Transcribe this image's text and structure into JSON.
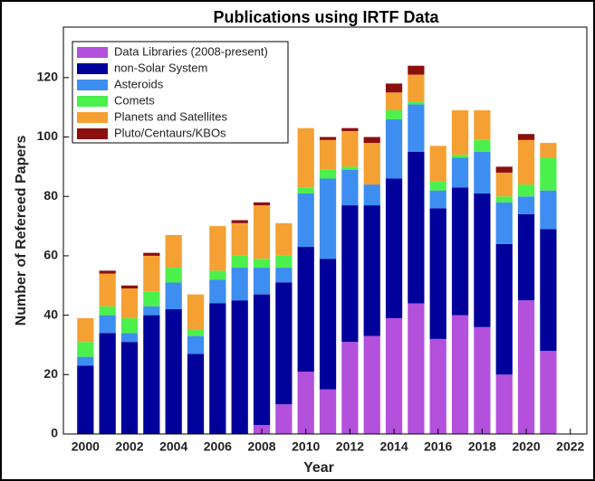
{
  "chart_data": {
    "type": "stacked-bar",
    "title": "Publications using IRTF Data",
    "x_label": "Year",
    "y_label": "Number of Refereed Papers",
    "x": [
      2000,
      2001,
      2002,
      2003,
      2004,
      2005,
      2006,
      2007,
      2008,
      2009,
      2010,
      2011,
      2012,
      2013,
      2014,
      2015,
      2016,
      2017,
      2018,
      2019,
      2020,
      2021
    ],
    "series": [
      {
        "name": "Data Libraries (2008-present)",
        "color": "#b350dc",
        "values": [
          0,
          0,
          0,
          0,
          0,
          0,
          0,
          0,
          3,
          10,
          21,
          15,
          31,
          33,
          39,
          44,
          32,
          40,
          36,
          20,
          45,
          28
        ]
      },
      {
        "name": "non-Solar System",
        "color": "#00009a",
        "values": [
          23,
          34,
          31,
          40,
          42,
          27,
          44,
          45,
          44,
          41,
          42,
          44,
          46,
          44,
          47,
          51,
          44,
          43,
          45,
          44,
          29,
          41
        ]
      },
      {
        "name": "Asteroids",
        "color": "#3d8ef0",
        "values": [
          3,
          6,
          3,
          3,
          9,
          6,
          8,
          11,
          9,
          5,
          18,
          27,
          12,
          7,
          20,
          16,
          6,
          10,
          14,
          14,
          6,
          13
        ]
      },
      {
        "name": "Comets",
        "color": "#4cf04c",
        "values": [
          5,
          3,
          5,
          5,
          5,
          2,
          3,
          4,
          3,
          4,
          2,
          3,
          1,
          0,
          3,
          1,
          3,
          1,
          4,
          2,
          4,
          11
        ]
      },
      {
        "name": "Planets and Satellites",
        "color": "#f5a032",
        "values": [
          8,
          11,
          10,
          12,
          11,
          12,
          15,
          11,
          18,
          11,
          20,
          10,
          12,
          14,
          6,
          9,
          12,
          15,
          10,
          8,
          15,
          5
        ]
      },
      {
        "name": "Pluto/Centaurs/KBOs",
        "color": "#8b1010",
        "values": [
          0,
          1,
          1,
          1,
          0,
          0,
          0,
          1,
          1,
          0,
          0,
          1,
          1,
          2,
          3,
          3,
          0,
          0,
          0,
          2,
          2,
          0
        ]
      }
    ],
    "xlim": [
      1999,
      2022.75
    ],
    "xticks": [
      2000,
      2002,
      2004,
      2006,
      2008,
      2010,
      2012,
      2014,
      2016,
      2018,
      2020,
      2022
    ],
    "ylim": [
      0,
      137
    ],
    "yticks": [
      0,
      20,
      40,
      60,
      80,
      100,
      120
    ],
    "legend": "upper left"
  }
}
